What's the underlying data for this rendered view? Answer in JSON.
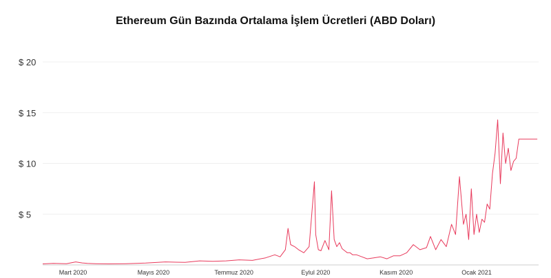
{
  "chart_data": {
    "type": "line",
    "title": "Ethereum Gün Bazında Ortalama İşlem Ücretleri (ABD Doları)",
    "xlabel": "",
    "ylabel": "",
    "ylim": [
      0,
      20
    ],
    "xlim": [
      "2020-02-07",
      "2021-02-17"
    ],
    "y_ticks": [
      {
        "value": 5,
        "label": "$ 5"
      },
      {
        "value": 10,
        "label": "$ 10"
      },
      {
        "value": 15,
        "label": "$ 15"
      },
      {
        "value": 20,
        "label": "$ 20"
      }
    ],
    "x_ticks": [
      {
        "date": "2020-03-01",
        "label": "Mart 2020"
      },
      {
        "date": "2020-05-01",
        "label": "Mayıs 2020"
      },
      {
        "date": "2020-07-01",
        "label": "Temmuz 2020"
      },
      {
        "date": "2020-09-01",
        "label": "Eylul 2020"
      },
      {
        "date": "2020-11-01",
        "label": "Kasım 2020"
      },
      {
        "date": "2021-01-01",
        "label": "Ocak  2021"
      }
    ],
    "grid": true,
    "line_color": "#e8385a",
    "series": [
      {
        "name": "",
        "x": [
          "2020-02-07",
          "2020-02-15",
          "2020-02-25",
          "2020-03-03",
          "2020-03-08",
          "2020-03-12",
          "2020-03-18",
          "2020-03-28",
          "2020-04-10",
          "2020-04-25",
          "2020-05-10",
          "2020-05-25",
          "2020-06-05",
          "2020-06-15",
          "2020-06-25",
          "2020-07-05",
          "2020-07-15",
          "2020-07-25",
          "2020-08-01",
          "2020-08-05",
          "2020-08-09",
          "2020-08-11",
          "2020-08-13",
          "2020-08-16",
          "2020-08-19",
          "2020-08-23",
          "2020-08-27",
          "2020-08-31",
          "2020-09-01",
          "2020-09-03",
          "2020-09-05",
          "2020-09-08",
          "2020-09-11",
          "2020-09-13",
          "2020-09-15",
          "2020-09-17",
          "2020-09-19",
          "2020-09-21",
          "2020-09-23",
          "2020-09-25",
          "2020-09-27",
          "2020-09-29",
          "2020-10-02",
          "2020-10-06",
          "2020-10-10",
          "2020-10-15",
          "2020-10-20",
          "2020-10-25",
          "2020-10-30",
          "2020-11-04",
          "2020-11-09",
          "2020-11-14",
          "2020-11-19",
          "2020-11-24",
          "2020-11-27",
          "2020-12-01",
          "2020-12-05",
          "2020-12-09",
          "2020-12-13",
          "2020-12-16",
          "2020-12-19",
          "2020-12-22",
          "2020-12-24",
          "2020-12-26",
          "2020-12-28",
          "2020-12-30",
          "2021-01-01",
          "2021-01-03",
          "2021-01-05",
          "2021-01-07",
          "2021-01-09",
          "2021-01-11",
          "2021-01-13",
          "2021-01-15",
          "2021-01-17",
          "2021-01-19",
          "2021-01-21",
          "2021-01-23",
          "2021-01-25",
          "2021-01-27",
          "2021-01-29",
          "2021-01-31",
          "2021-02-02",
          "2021-02-04",
          "2021-02-06",
          "2021-02-08",
          "2021-02-10",
          "2021-02-12",
          "2021-02-14",
          "2021-02-16"
        ],
        "values": [
          0.1,
          0.15,
          0.12,
          0.3,
          0.2,
          0.15,
          0.12,
          0.1,
          0.12,
          0.18,
          0.3,
          0.25,
          0.4,
          0.35,
          0.4,
          0.5,
          0.45,
          0.7,
          1.0,
          0.8,
          1.5,
          3.6,
          2.0,
          1.8,
          1.5,
          1.2,
          1.8,
          8.2,
          3.0,
          1.5,
          1.4,
          2.4,
          1.5,
          7.3,
          2.5,
          1.8,
          2.2,
          1.6,
          1.4,
          1.2,
          1.2,
          1.0,
          1.0,
          0.8,
          0.6,
          0.7,
          0.8,
          0.6,
          0.9,
          0.9,
          1.2,
          2.0,
          1.5,
          1.7,
          2.8,
          1.5,
          2.5,
          1.8,
          4.0,
          3.0,
          8.7,
          4.0,
          5.0,
          2.5,
          7.5,
          3.0,
          5.0,
          3.2,
          4.5,
          4.2,
          6.0,
          5.5,
          9.0,
          11.0,
          14.3,
          8.0,
          13.0,
          10.0,
          11.5,
          9.3,
          10.2,
          10.5,
          12.4,
          12.4,
          12.4,
          12.4,
          12.4,
          12.4,
          12.4,
          12.4
        ]
      }
    ]
  }
}
